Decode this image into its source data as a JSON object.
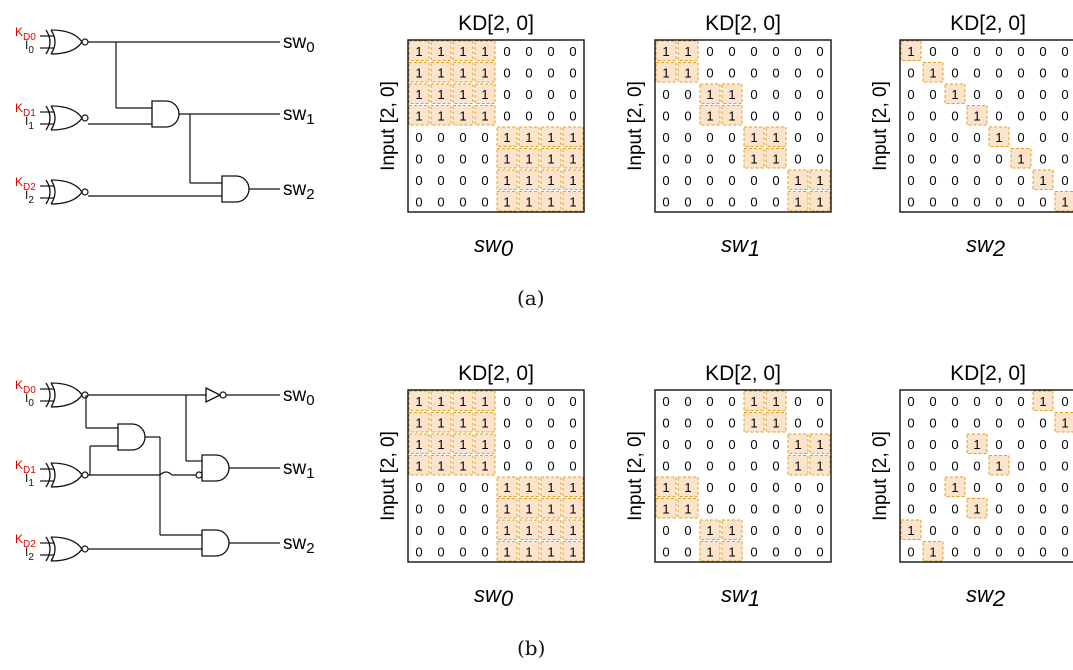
{
  "panels": [
    {
      "caption": "(a)",
      "gates": [
        {
          "key": "KD0",
          "input": "I0"
        },
        {
          "key": "KD1",
          "input": "I1"
        },
        {
          "key": "KD2",
          "input": "I2"
        }
      ],
      "outputs": [
        "sw0",
        "sw1",
        "sw2"
      ],
      "matrices": [
        {
          "title": "KD[2, 0]",
          "ylabel": "Input [2, 0]",
          "xlabel": "sw0",
          "rows": [
            "11110000",
            "11110000",
            "11110000",
            "11110000",
            "00001111",
            "00001111",
            "00001111",
            "00001111"
          ]
        },
        {
          "title": "KD[2, 0]",
          "ylabel": "Input [2, 0]",
          "xlabel": "sw1",
          "rows": [
            "11000000",
            "11000000",
            "00110000",
            "00110000",
            "00001100",
            "00001100",
            "00000011",
            "00000011"
          ]
        },
        {
          "title": "KD[2, 0]",
          "ylabel": "Input [2, 0]",
          "xlabel": "sw2",
          "rows": [
            "10000000",
            "01000000",
            "00100000",
            "00010000",
            "00001000",
            "00000100",
            "00000010",
            "00000001"
          ]
        }
      ]
    },
    {
      "caption": "(b)",
      "gates": [
        {
          "key": "KD0",
          "input": "I0"
        },
        {
          "key": "KD1",
          "input": "I1"
        },
        {
          "key": "KD2",
          "input": "I2"
        }
      ],
      "outputs": [
        "sw0",
        "sw1",
        "sw2"
      ],
      "matrices": [
        {
          "title": "KD[2, 0]",
          "ylabel": "Input [2, 0]",
          "xlabel": "sw0",
          "rows": [
            "11110000",
            "11110000",
            "11110000",
            "11110000",
            "00001111",
            "00001111",
            "00001111",
            "00001111"
          ]
        },
        {
          "title": "KD[2, 0]",
          "ylabel": "Input [2, 0]",
          "xlabel": "sw1",
          "rows": [
            "00001100",
            "00001100",
            "00000011",
            "00000011",
            "11000000",
            "11000000",
            "00110000",
            "00110000"
          ]
        },
        {
          "title": "KD[2, 0]",
          "ylabel": "Input [2, 0]",
          "xlabel": "sw2",
          "rows": [
            "00000010",
            "00000001",
            "00010000",
            "00001000",
            "00100000",
            "00010000",
            "10000000",
            "01000000"
          ]
        }
      ]
    }
  ],
  "colors": {
    "highlight": "#fbe3cc",
    "dash": "#e0a020",
    "key_red": "#e00000"
  }
}
